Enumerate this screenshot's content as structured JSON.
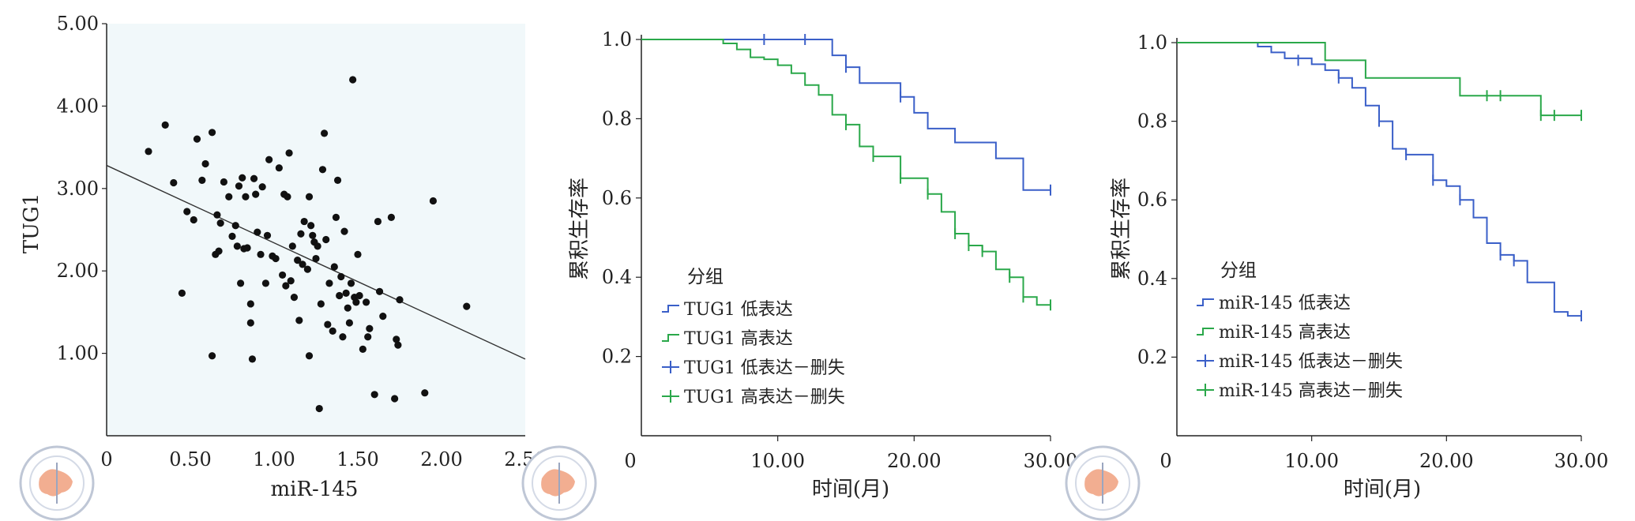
{
  "chart_data": [
    {
      "type": "scatter",
      "xlabel": "miR-145",
      "ylabel": "TUG1",
      "xlim": [
        0,
        2.5
      ],
      "ylim": [
        0,
        5
      ],
      "x_ticks": [
        "0",
        "0.50",
        "1.00",
        "1.50",
        "2.00",
        "2.50"
      ],
      "y_ticks": [
        "1.00",
        "2.00",
        "3.00",
        "4.00",
        "5.00"
      ],
      "background": "#f1f8fa",
      "points": [
        [
          0.25,
          3.45
        ],
        [
          0.35,
          3.77
        ],
        [
          0.4,
          3.07
        ],
        [
          0.45,
          1.73
        ],
        [
          0.48,
          2.72
        ],
        [
          0.52,
          2.62
        ],
        [
          0.54,
          3.6
        ],
        [
          0.57,
          3.1
        ],
        [
          0.59,
          3.3
        ],
        [
          0.63,
          3.68
        ],
        [
          0.65,
          2.2
        ],
        [
          0.66,
          2.68
        ],
        [
          0.67,
          2.24
        ],
        [
          0.68,
          2.58
        ],
        [
          0.63,
          0.97
        ],
        [
          0.7,
          3.08
        ],
        [
          0.73,
          2.9
        ],
        [
          0.75,
          2.42
        ],
        [
          0.77,
          2.55
        ],
        [
          0.78,
          2.3
        ],
        [
          0.79,
          3.03
        ],
        [
          0.8,
          1.85
        ],
        [
          0.81,
          3.13
        ],
        [
          0.82,
          2.27
        ],
        [
          0.83,
          2.9
        ],
        [
          0.84,
          2.28
        ],
        [
          0.86,
          1.6
        ],
        [
          0.86,
          1.37
        ],
        [
          0.87,
          0.93
        ],
        [
          0.88,
          3.12
        ],
        [
          0.89,
          2.93
        ],
        [
          0.9,
          2.47
        ],
        [
          0.92,
          2.2
        ],
        [
          0.93,
          3.02
        ],
        [
          0.95,
          1.85
        ],
        [
          0.96,
          2.43
        ],
        [
          0.97,
          3.35
        ],
        [
          0.99,
          2.18
        ],
        [
          1.01,
          2.15
        ],
        [
          1.03,
          3.25
        ],
        [
          1.05,
          1.95
        ],
        [
          1.06,
          2.93
        ],
        [
          1.07,
          1.82
        ],
        [
          1.08,
          2.9
        ],
        [
          1.09,
          3.43
        ],
        [
          1.1,
          1.88
        ],
        [
          1.11,
          2.3
        ],
        [
          1.12,
          1.68
        ],
        [
          1.14,
          2.13
        ],
        [
          1.15,
          1.4
        ],
        [
          1.16,
          2.45
        ],
        [
          1.17,
          2.08
        ],
        [
          1.18,
          2.6
        ],
        [
          1.2,
          2.02
        ],
        [
          1.21,
          2.9
        ],
        [
          1.21,
          0.97
        ],
        [
          1.22,
          2.55
        ],
        [
          1.23,
          2.43
        ],
        [
          1.24,
          2.35
        ],
        [
          1.25,
          2.15
        ],
        [
          1.26,
          2.3
        ],
        [
          1.27,
          0.33
        ],
        [
          1.28,
          1.6
        ],
        [
          1.29,
          3.23
        ],
        [
          1.3,
          3.67
        ],
        [
          1.31,
          2.38
        ],
        [
          1.32,
          1.35
        ],
        [
          1.33,
          1.85
        ],
        [
          1.35,
          1.27
        ],
        [
          1.36,
          2.05
        ],
        [
          1.37,
          2.65
        ],
        [
          1.38,
          3.1
        ],
        [
          1.39,
          1.7
        ],
        [
          1.4,
          1.93
        ],
        [
          1.41,
          1.2
        ],
        [
          1.42,
          2.48
        ],
        [
          1.43,
          1.73
        ],
        [
          1.44,
          1.55
        ],
        [
          1.45,
          1.37
        ],
        [
          1.46,
          1.85
        ],
        [
          1.47,
          4.32
        ],
        [
          1.48,
          1.68
        ],
        [
          1.49,
          1.62
        ],
        [
          1.5,
          2.2
        ],
        [
          1.51,
          1.7
        ],
        [
          1.53,
          1.05
        ],
        [
          1.55,
          1.62
        ],
        [
          1.56,
          1.2
        ],
        [
          1.57,
          1.3
        ],
        [
          1.6,
          0.5
        ],
        [
          1.62,
          2.6
        ],
        [
          1.63,
          1.75
        ],
        [
          1.65,
          1.45
        ],
        [
          1.7,
          2.65
        ],
        [
          1.72,
          0.45
        ],
        [
          1.73,
          1.17
        ],
        [
          1.74,
          1.1
        ],
        [
          1.75,
          1.65
        ],
        [
          1.9,
          0.52
        ],
        [
          1.95,
          2.85
        ],
        [
          2.15,
          1.57
        ]
      ],
      "fit_line": [
        [
          0,
          3.28
        ],
        [
          2.5,
          0.93
        ]
      ]
    },
    {
      "type": "line",
      "step": true,
      "ylabel": "累积生存率",
      "xlabel": "时间(月)",
      "xlim": [
        0,
        30
      ],
      "ylim": [
        0,
        1.0
      ],
      "x_ticks": [
        "0",
        "10.00",
        "20.00",
        "30.00"
      ],
      "y_ticks": [
        "0.2",
        "0.4",
        "0.6",
        "0.8",
        "1.0"
      ],
      "legend_title": "分组",
      "legend_items": [
        "TUG1 低表达",
        "TUG1 高表达",
        "TUG1 低表达－删失",
        "TUG1 高表达－删失"
      ],
      "series": [
        {
          "name": "TUG1 低表达",
          "color": "#3a5fc8",
          "steps": [
            [
              0,
              1.0
            ],
            [
              14,
              1.0
            ],
            [
              14,
              0.96
            ],
            [
              15,
              0.96
            ],
            [
              15,
              0.93
            ],
            [
              16,
              0.93
            ],
            [
              16,
              0.89
            ],
            [
              19,
              0.89
            ],
            [
              19,
              0.855
            ],
            [
              20,
              0.855
            ],
            [
              20,
              0.815
            ],
            [
              21,
              0.815
            ],
            [
              21,
              0.775
            ],
            [
              23,
              0.775
            ],
            [
              23,
              0.74
            ],
            [
              26,
              0.74
            ],
            [
              26,
              0.7
            ],
            [
              28,
              0.7
            ],
            [
              28,
              0.62
            ],
            [
              30,
              0.62
            ]
          ],
          "censored": [
            [
              9,
              1.0
            ],
            [
              12,
              1.0
            ],
            [
              15,
              0.93
            ],
            [
              19,
              0.855
            ],
            [
              30,
              0.62
            ]
          ]
        },
        {
          "name": "TUG1 高表达",
          "color": "#2aa84a",
          "steps": [
            [
              0,
              1.0
            ],
            [
              6,
              1.0
            ],
            [
              6,
              0.99
            ],
            [
              7,
              0.99
            ],
            [
              7,
              0.975
            ],
            [
              8,
              0.975
            ],
            [
              8,
              0.955
            ],
            [
              9,
              0.955
            ],
            [
              9,
              0.95
            ],
            [
              10,
              0.95
            ],
            [
              10,
              0.935
            ],
            [
              11,
              0.935
            ],
            [
              11,
              0.915
            ],
            [
              12,
              0.915
            ],
            [
              12,
              0.885
            ],
            [
              13,
              0.885
            ],
            [
              13,
              0.86
            ],
            [
              14,
              0.86
            ],
            [
              14,
              0.81
            ],
            [
              15,
              0.81
            ],
            [
              15,
              0.785
            ],
            [
              16,
              0.785
            ],
            [
              16,
              0.73
            ],
            [
              17,
              0.73
            ],
            [
              17,
              0.705
            ],
            [
              19,
              0.705
            ],
            [
              19,
              0.65
            ],
            [
              21,
              0.65
            ],
            [
              21,
              0.61
            ],
            [
              22,
              0.61
            ],
            [
              22,
              0.565
            ],
            [
              23,
              0.565
            ],
            [
              23,
              0.51
            ],
            [
              24,
              0.51
            ],
            [
              24,
              0.48
            ],
            [
              25,
              0.48
            ],
            [
              25,
              0.465
            ],
            [
              26,
              0.465
            ],
            [
              26,
              0.42
            ],
            [
              27,
              0.42
            ],
            [
              27,
              0.4
            ],
            [
              28,
              0.4
            ],
            [
              28,
              0.35
            ],
            [
              29,
              0.35
            ],
            [
              29,
              0.33
            ],
            [
              30,
              0.33
            ]
          ],
          "censored": [
            [
              15,
              0.785
            ],
            [
              17,
              0.705
            ],
            [
              19,
              0.65
            ],
            [
              21,
              0.61
            ],
            [
              23,
              0.51
            ],
            [
              24,
              0.48
            ],
            [
              25,
              0.465
            ],
            [
              27,
              0.4
            ],
            [
              28,
              0.35
            ],
            [
              30,
              0.33
            ]
          ]
        }
      ]
    },
    {
      "type": "line",
      "step": true,
      "ylabel": "累积生存率",
      "xlabel": "时间(月)",
      "xlim": [
        0,
        30
      ],
      "ylim": [
        0,
        1.0
      ],
      "x_ticks": [
        "0",
        "10.00",
        "20.00",
        "30.00"
      ],
      "y_ticks": [
        "0.2",
        "0.4",
        "0.6",
        "0.8",
        "1.0"
      ],
      "legend_title": "分组",
      "legend_items": [
        "miR-145 低表达",
        "miR-145 高表达",
        "miR-145 低表达－删失",
        "miR-145 高表达－删失"
      ],
      "series": [
        {
          "name": "miR-145 低表达",
          "color": "#3a5fc8",
          "steps": [
            [
              0,
              1.0
            ],
            [
              6,
              1.0
            ],
            [
              6,
              0.99
            ],
            [
              7,
              0.99
            ],
            [
              7,
              0.975
            ],
            [
              8,
              0.975
            ],
            [
              8,
              0.96
            ],
            [
              10,
              0.96
            ],
            [
              10,
              0.945
            ],
            [
              11,
              0.945
            ],
            [
              11,
              0.93
            ],
            [
              12,
              0.93
            ],
            [
              12,
              0.91
            ],
            [
              13,
              0.91
            ],
            [
              13,
              0.885
            ],
            [
              14,
              0.885
            ],
            [
              14,
              0.84
            ],
            [
              15,
              0.84
            ],
            [
              15,
              0.8
            ],
            [
              16,
              0.8
            ],
            [
              16,
              0.73
            ],
            [
              17,
              0.73
            ],
            [
              17,
              0.715
            ],
            [
              19,
              0.715
            ],
            [
              19,
              0.65
            ],
            [
              20,
              0.65
            ],
            [
              20,
              0.635
            ],
            [
              21,
              0.635
            ],
            [
              21,
              0.6
            ],
            [
              22,
              0.6
            ],
            [
              22,
              0.555
            ],
            [
              23,
              0.555
            ],
            [
              23,
              0.49
            ],
            [
              24,
              0.49
            ],
            [
              24,
              0.46
            ],
            [
              25,
              0.46
            ],
            [
              25,
              0.445
            ],
            [
              26,
              0.445
            ],
            [
              26,
              0.39
            ],
            [
              28,
              0.39
            ],
            [
              28,
              0.315
            ],
            [
              29,
              0.315
            ],
            [
              29,
              0.305
            ],
            [
              30,
              0.305
            ]
          ],
          "censored": [
            [
              9,
              0.955
            ],
            [
              12,
              0.91
            ],
            [
              15,
              0.8
            ],
            [
              17,
              0.715
            ],
            [
              19,
              0.65
            ],
            [
              21,
              0.6
            ],
            [
              24,
              0.46
            ],
            [
              25,
              0.445
            ],
            [
              30,
              0.305
            ]
          ]
        },
        {
          "name": "miR-145 高表达",
          "color": "#2aa84a",
          "steps": [
            [
              0,
              1.0
            ],
            [
              11,
              1.0
            ],
            [
              11,
              0.955
            ],
            [
              14,
              0.955
            ],
            [
              14,
              0.91
            ],
            [
              21,
              0.91
            ],
            [
              21,
              0.865
            ],
            [
              27,
              0.865
            ],
            [
              27,
              0.815
            ],
            [
              30,
              0.815
            ]
          ],
          "censored": [
            [
              23,
              0.865
            ],
            [
              24,
              0.865
            ],
            [
              27,
              0.815
            ],
            [
              28,
              0.815
            ],
            [
              30,
              0.815
            ]
          ]
        }
      ]
    }
  ]
}
